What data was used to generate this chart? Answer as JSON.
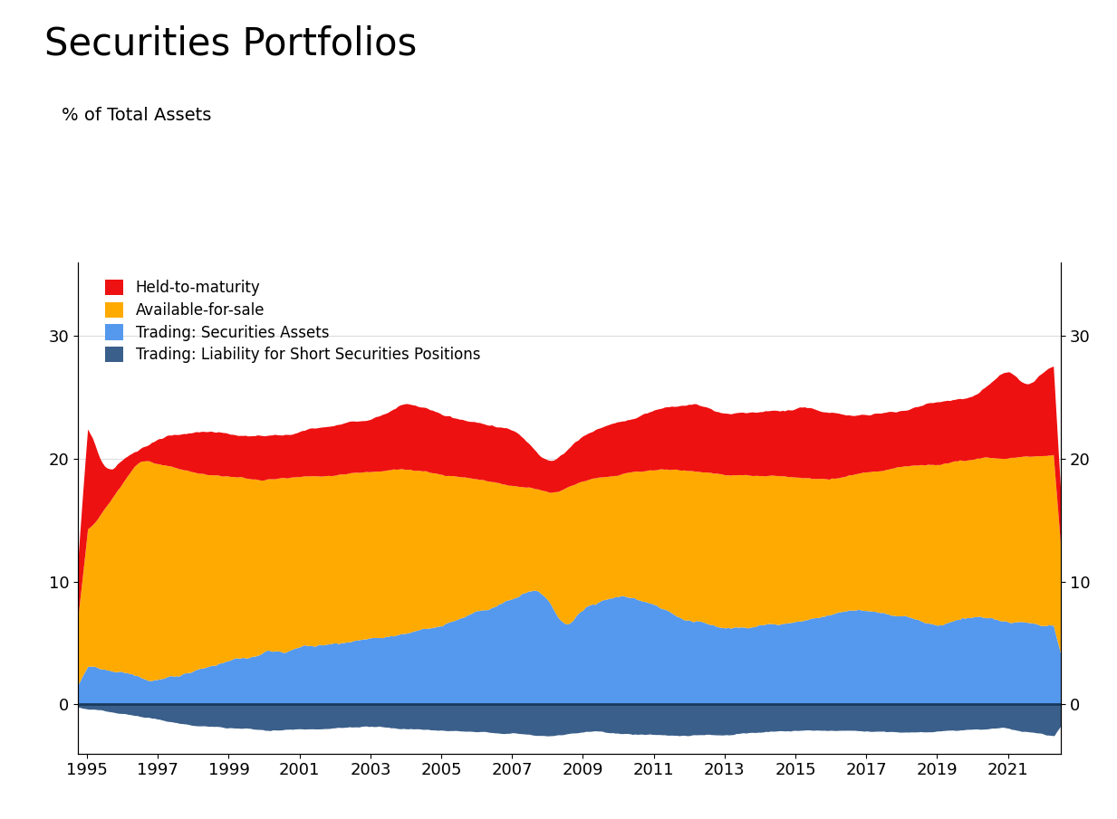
{
  "title": "Securities Portfolios",
  "subtitle": "% of Total Assets",
  "colors": {
    "held_to_maturity": "#EE1111",
    "available_for_sale": "#FFAA00",
    "trading_assets": "#5599EE",
    "trading_liability": "#3A5F8A"
  },
  "legend_labels": [
    "Held-to-maturity",
    "Available-for-sale",
    "Trading: Securities Assets",
    "Trading: Liability for Short Securities Positions"
  ],
  "ylim": [
    -4.0,
    36
  ],
  "yticks": [
    0,
    10,
    20,
    30
  ],
  "background_color": "#FFFFFF",
  "title_fontsize": 30,
  "subtitle_fontsize": 14,
  "axis_fontsize": 13
}
